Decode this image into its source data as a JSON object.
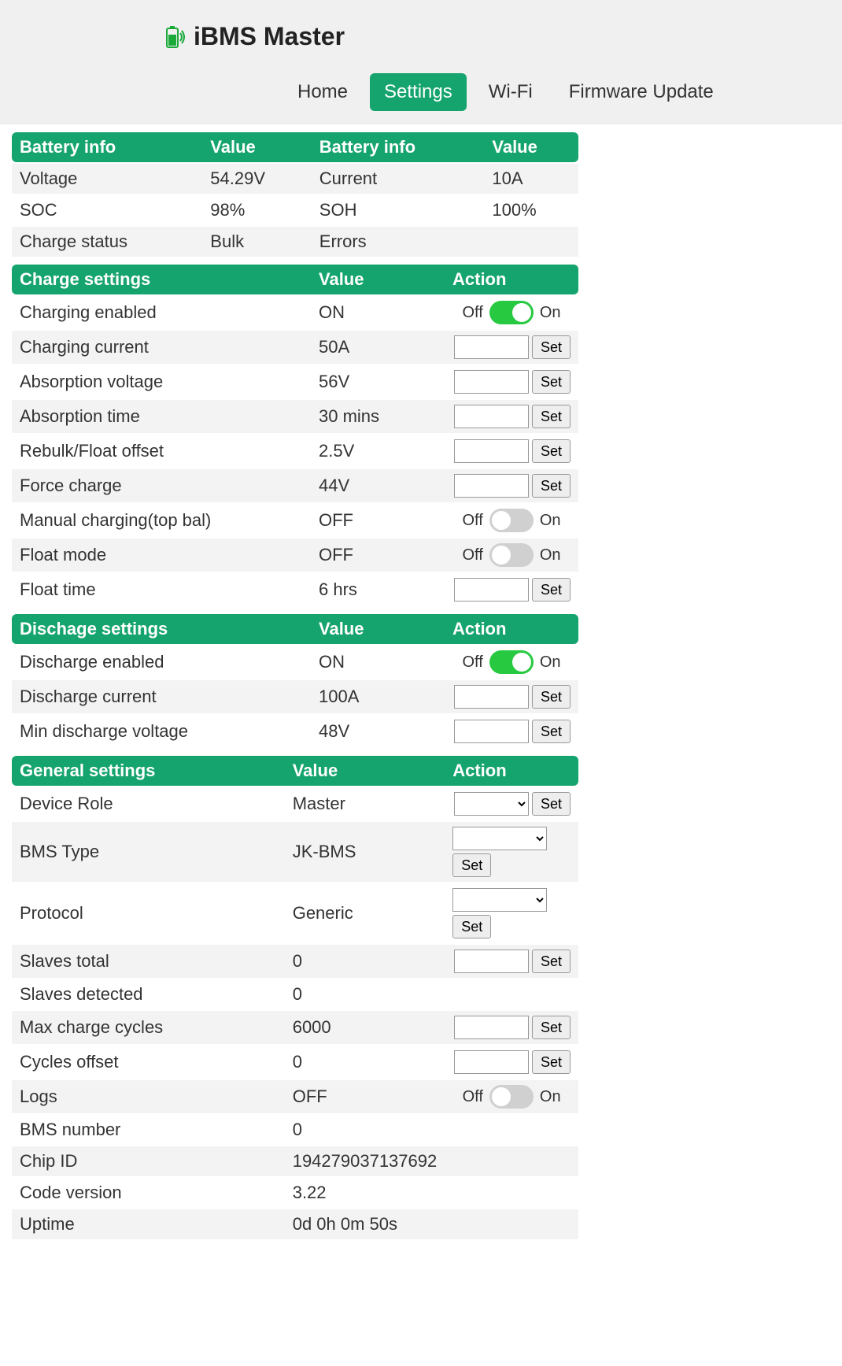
{
  "colors": {
    "accent": "#15a46e",
    "toggle_on": "#26c940",
    "toggle_off": "#d0d0d0",
    "header_bg": "#f0f0f0",
    "row_alt_bg": "#f3f3f3",
    "text": "#333333"
  },
  "brand": {
    "title": "iBMS Master",
    "icon": "battery-signal-icon"
  },
  "nav": {
    "items": [
      {
        "label": "Home",
        "active": false
      },
      {
        "label": "Settings",
        "active": true
      },
      {
        "label": "Wi-Fi",
        "active": false
      },
      {
        "label": "Firmware Update",
        "active": false
      }
    ]
  },
  "info_table": {
    "headers": [
      "Battery info",
      "Value",
      "Battery info",
      "Value"
    ],
    "rows": [
      {
        "l1": "Voltage",
        "v1": "54.29V",
        "l2": "Current",
        "v2": "10A"
      },
      {
        "l1": "SOC",
        "v1": "98%",
        "l2": "SOH",
        "v2": "100%"
      },
      {
        "l1": "Charge status",
        "v1": "Bulk",
        "l2": "Errors",
        "v2": ""
      }
    ]
  },
  "charge_settings": {
    "headers": [
      "Charge settings",
      "Value",
      "Action"
    ],
    "off_label": "Off",
    "on_label": "On",
    "set_label": "Set",
    "rows": [
      {
        "label": "Charging enabled",
        "value": "ON",
        "type": "toggle",
        "state": "on"
      },
      {
        "label": "Charging current",
        "value": "50A",
        "type": "input"
      },
      {
        "label": "Absorption voltage",
        "value": "56V",
        "type": "input"
      },
      {
        "label": "Absorption time",
        "value": "30 mins",
        "type": "input"
      },
      {
        "label": "Rebulk/Float offset",
        "value": "2.5V",
        "type": "input"
      },
      {
        "label": "Force charge",
        "value": "44V",
        "type": "input"
      },
      {
        "label": "Manual charging(top bal)",
        "value": "OFF",
        "type": "toggle",
        "state": "off"
      },
      {
        "label": "Float mode",
        "value": "OFF",
        "type": "toggle",
        "state": "off"
      },
      {
        "label": "Float time",
        "value": "6 hrs",
        "type": "input"
      }
    ]
  },
  "discharge_settings": {
    "headers": [
      "Dischage settings",
      "Value",
      "Action"
    ],
    "rows": [
      {
        "label": "Discharge enabled",
        "value": "ON",
        "type": "toggle",
        "state": "on"
      },
      {
        "label": "Discharge current",
        "value": "100A",
        "type": "input"
      },
      {
        "label": "Min discharge voltage",
        "value": "48V",
        "type": "input"
      }
    ]
  },
  "general_settings": {
    "headers": [
      "General settings",
      "Value",
      "Action"
    ],
    "rows": [
      {
        "label": "Device Role",
        "value": "Master",
        "type": "select"
      },
      {
        "label": "BMS Type",
        "value": "JK-BMS",
        "type": "select_stack"
      },
      {
        "label": "Protocol",
        "value": "Generic",
        "type": "select_stack"
      },
      {
        "label": "Slaves total",
        "value": "0",
        "type": "input"
      },
      {
        "label": "Slaves detected",
        "value": "0",
        "type": "none"
      },
      {
        "label": "Max charge cycles",
        "value": "6000",
        "type": "input"
      },
      {
        "label": "Cycles offset",
        "value": "0",
        "type": "input"
      },
      {
        "label": "Logs",
        "value": "OFF",
        "type": "toggle",
        "state": "off"
      },
      {
        "label": "BMS number",
        "value": "0",
        "type": "none"
      },
      {
        "label": "Chip ID",
        "value": "194279037137692",
        "type": "none"
      },
      {
        "label": "Code version",
        "value": "3.22",
        "type": "none"
      },
      {
        "label": "Uptime",
        "value": "0d 0h 0m 50s",
        "type": "none"
      }
    ]
  }
}
